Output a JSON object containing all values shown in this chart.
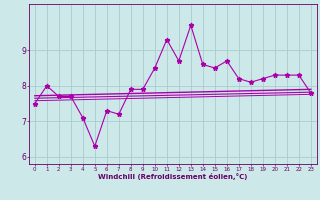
{
  "xlabel": "Windchill (Refroidissement éolien,°C)",
  "x": [
    0,
    1,
    2,
    3,
    4,
    5,
    6,
    7,
    8,
    9,
    10,
    11,
    12,
    13,
    14,
    15,
    16,
    17,
    18,
    19,
    20,
    21,
    22,
    23
  ],
  "main_y": [
    7.5,
    8.0,
    7.7,
    7.7,
    7.1,
    6.3,
    7.3,
    7.2,
    7.9,
    7.9,
    8.5,
    9.3,
    8.7,
    9.7,
    8.6,
    8.5,
    8.7,
    8.2,
    8.1,
    8.2,
    8.3,
    8.3,
    8.3,
    7.8
  ],
  "reg_line1_x": [
    0,
    23
  ],
  "reg_line1_y": [
    7.72,
    7.9
  ],
  "reg_line2_x": [
    0,
    23
  ],
  "reg_line2_y": [
    7.65,
    7.82
  ],
  "reg_line3_x": [
    0,
    23
  ],
  "reg_line3_y": [
    7.58,
    7.76
  ],
  "line_color": "#aa00aa",
  "bg_color": "#cce8e8",
  "grid_color": "#aacccc",
  "text_color": "#660066",
  "ylim": [
    5.8,
    10.3
  ],
  "xlim": [
    -0.5,
    23.5
  ],
  "yticks": [
    6,
    7,
    8,
    9
  ],
  "xticks": [
    0,
    1,
    2,
    3,
    4,
    5,
    6,
    7,
    8,
    9,
    10,
    11,
    12,
    13,
    14,
    15,
    16,
    17,
    18,
    19,
    20,
    21,
    22,
    23
  ]
}
